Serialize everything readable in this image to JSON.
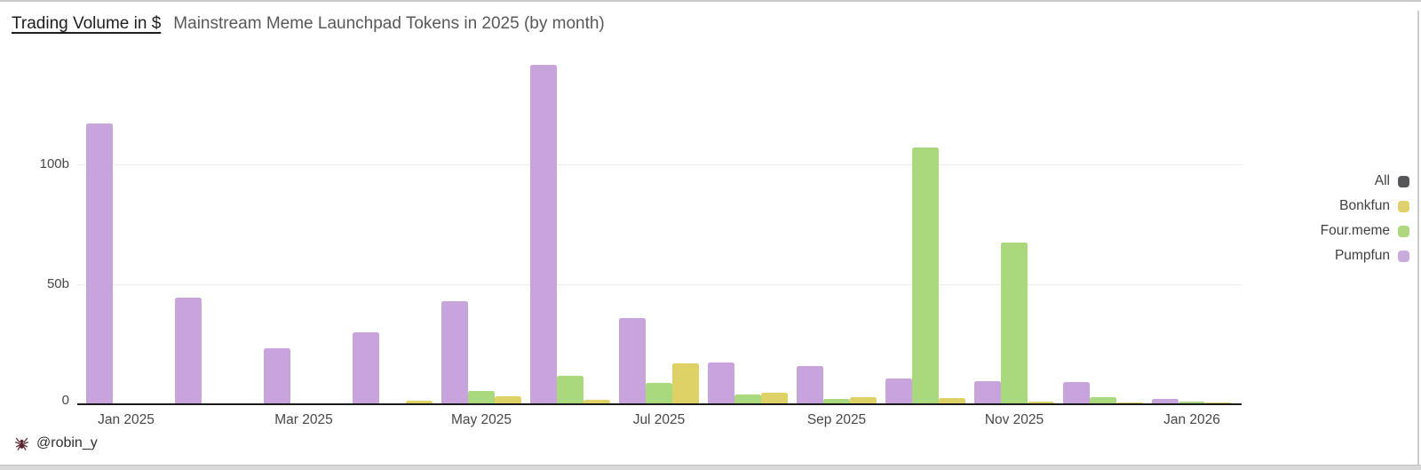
{
  "header": {
    "title": "Trading Volume in $",
    "subtitle": "Mainstream Meme Launchpad Tokens in 2025 (by month)"
  },
  "attribution": {
    "handle": "@robin_y",
    "icon": "spider-icon"
  },
  "legend": {
    "position": "right",
    "items": [
      {
        "label": "All",
        "color": "#57575a"
      },
      {
        "label": "Bonkfun",
        "color": "#e0d16e"
      },
      {
        "label": "Four.meme",
        "color": "#aed87e"
      },
      {
        "label": "Pumpfun",
        "color": "#c9abdd"
      }
    ]
  },
  "chart_data": {
    "type": "bar",
    "title": "Trading Volume in $",
    "subtitle": "Mainstream Meme Launchpad Tokens in 2025 (by month)",
    "unit": "billions of USD",
    "grid": true,
    "ylim": [
      0,
      146
    ],
    "categories": [
      "Jan 2025",
      "Feb 2025",
      "Mar 2025",
      "Apr 2025",
      "May 2025",
      "Jun 2025",
      "Jul 2025",
      "Aug 2025",
      "Sep 2025",
      "Oct 2025",
      "Nov 2025",
      "Dec 2025",
      "Jan 2026"
    ],
    "y_ticks": [
      {
        "label": "0",
        "value": 0
      },
      {
        "label": "50b",
        "value": 50
      },
      {
        "label": "100b",
        "value": 100
      }
    ],
    "x_ticks": [
      {
        "label": "Jan 2025",
        "month_index": 0
      },
      {
        "label": "Mar 2025",
        "month_index": 2
      },
      {
        "label": "May 2025",
        "month_index": 4
      },
      {
        "label": "Jul 2025",
        "month_index": 6
      },
      {
        "label": "Sep 2025",
        "month_index": 8
      },
      {
        "label": "Nov 2025",
        "month_index": 10
      },
      {
        "label": "Jan 2026",
        "month_index": 12
      }
    ],
    "series": [
      {
        "name": "Pumpfun",
        "color": "#c8a4dd",
        "values": [
          117,
          44.5,
          23.5,
          30,
          43,
          141.5,
          36,
          17.5,
          16,
          10.7,
          9.6,
          9.3,
          2.2
        ]
      },
      {
        "name": "Four.meme",
        "color": "#aad87c",
        "values": [
          0,
          0,
          0,
          0.5,
          5.5,
          11.8,
          8.9,
          4,
          2.3,
          107,
          67.5,
          3,
          1.2
        ]
      },
      {
        "name": "Bonkfun",
        "color": "#ded166",
        "values": [
          0,
          0,
          0,
          1.3,
          3.2,
          1.7,
          17.2,
          4.8,
          3,
          2.6,
          1.1,
          0.8,
          0.7
        ]
      }
    ]
  }
}
